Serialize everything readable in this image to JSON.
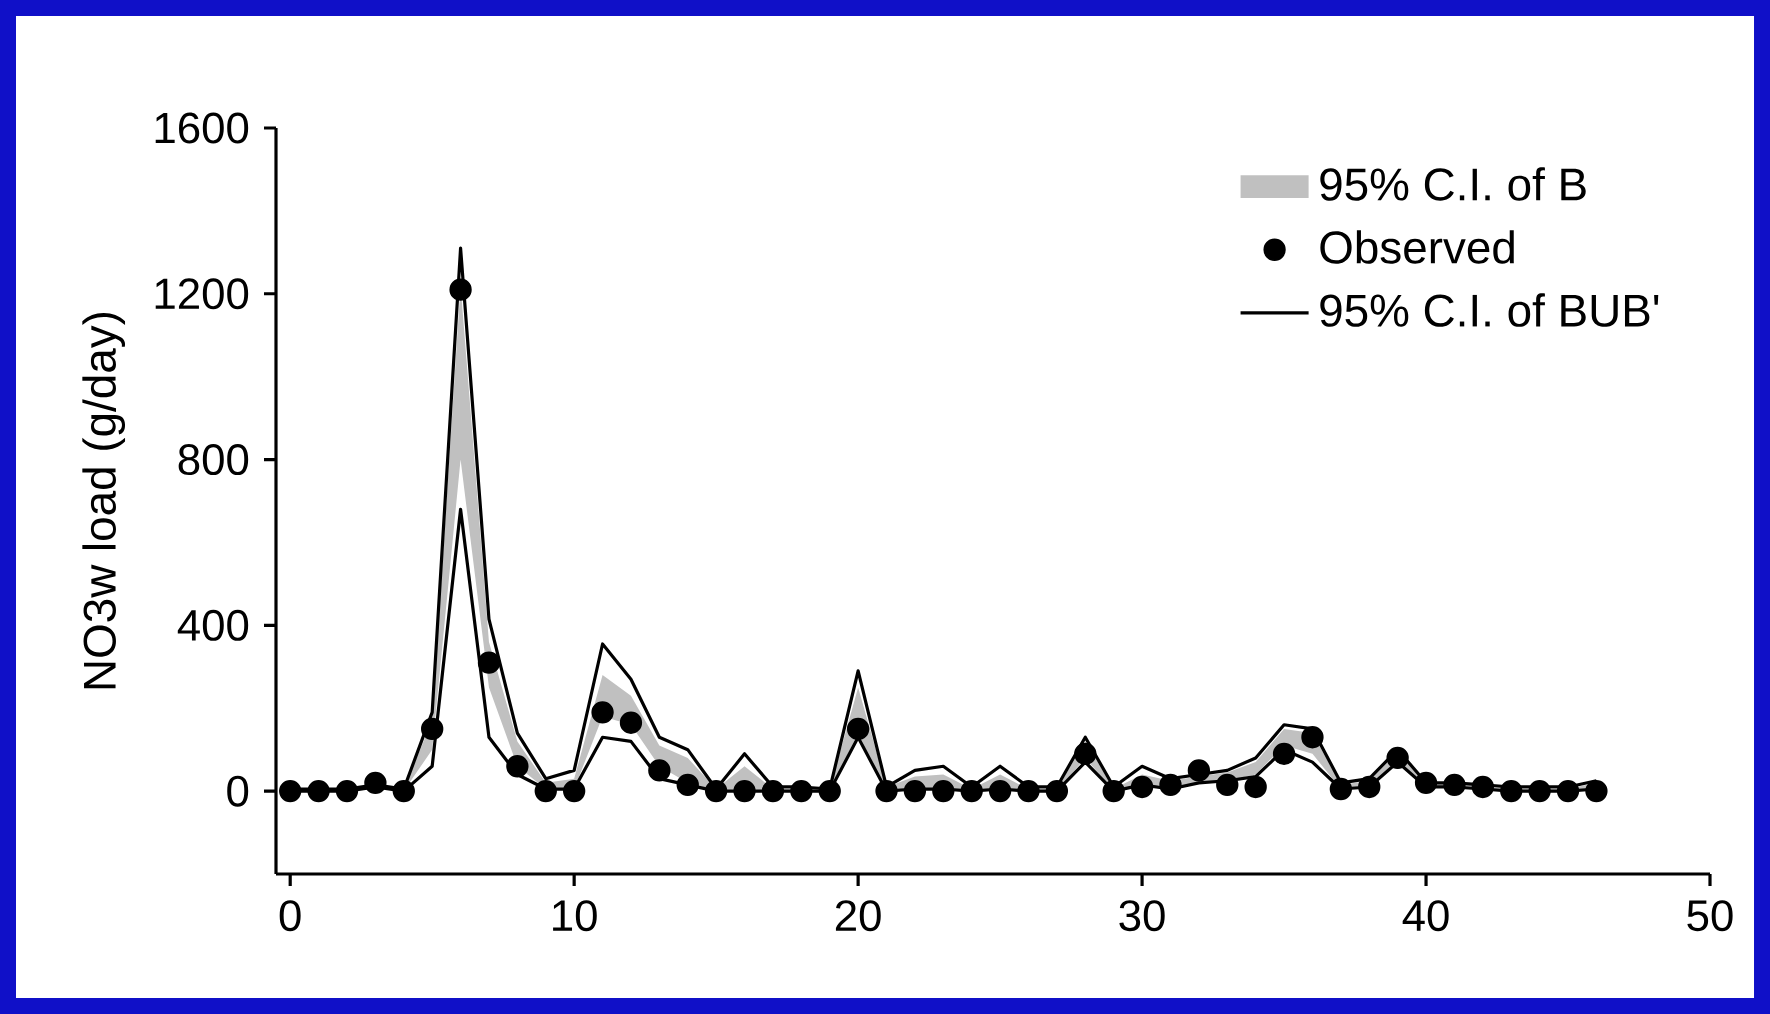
{
  "chart_data": {
    "type": "line",
    "ylabel": "NO3w  load (g/day)",
    "x": [
      0,
      1,
      2,
      3,
      4,
      5,
      6,
      7,
      8,
      9,
      10,
      11,
      12,
      13,
      14,
      15,
      16,
      17,
      18,
      19,
      20,
      21,
      22,
      23,
      24,
      25,
      26,
      27,
      28,
      29,
      30,
      31,
      32,
      33,
      34,
      35,
      36,
      37,
      38,
      39,
      40,
      41,
      42,
      43,
      44,
      45,
      46
    ],
    "xlim": [
      -0.5,
      50
    ],
    "xticks": [
      0,
      10,
      20,
      30,
      40,
      50
    ],
    "ylim": [
      -200,
      1600
    ],
    "yticks": [
      0,
      400,
      800,
      1200,
      1600
    ],
    "grid": false,
    "legend": "top right",
    "series": [
      {
        "name": "95% C.I. of B",
        "type": "area",
        "color": "#c0c0c0",
        "values": [
          null,
          null,
          null,
          null,
          null,
          null,
          null,
          null,
          null,
          null,
          null,
          null,
          null,
          null,
          null,
          null,
          null,
          null,
          null,
          null,
          null,
          null,
          null,
          null,
          null,
          null,
          null,
          null,
          null,
          null,
          null,
          null,
          null,
          null,
          null,
          null,
          null,
          null,
          null,
          null,
          null,
          null,
          null,
          null,
          null,
          null,
          null
        ],
        "lower": [
          0,
          0,
          0,
          10,
          0,
          100,
          800,
          250,
          60,
          5,
          5,
          180,
          160,
          60,
          20,
          0,
          5,
          0,
          0,
          0,
          140,
          0,
          5,
          5,
          0,
          5,
          0,
          0,
          80,
          0,
          10,
          10,
          20,
          25,
          40,
          110,
          90,
          5,
          10,
          70,
          10,
          10,
          5,
          0,
          0,
          0,
          5
        ],
        "upper": [
          5,
          5,
          5,
          15,
          5,
          170,
          1220,
          360,
          120,
          20,
          30,
          280,
          230,
          110,
          80,
          5,
          60,
          5,
          5,
          5,
          250,
          10,
          35,
          40,
          5,
          40,
          5,
          5,
          120,
          5,
          40,
          25,
          35,
          45,
          70,
          150,
          140,
          15,
          25,
          95,
          20,
          20,
          10,
          5,
          5,
          5,
          20
        ]
      },
      {
        "name": "Observed",
        "type": "scatter",
        "marker": "circle",
        "color": "#000000",
        "values": [
          0,
          0,
          0,
          20,
          0,
          150,
          1210,
          310,
          60,
          0,
          0,
          190,
          165,
          50,
          15,
          0,
          0,
          0,
          0,
          0,
          150,
          0,
          0,
          0,
          0,
          0,
          0,
          0,
          90,
          0,
          10,
          15,
          50,
          15,
          10,
          90,
          130,
          5,
          10,
          80,
          20,
          15,
          10,
          0,
          0,
          0,
          0
        ]
      },
      {
        "name": "95% C.I. of BUB'",
        "color": "#000000",
        "values": [
          5,
          5,
          5,
          15,
          5,
          190,
          1310,
          415,
          140,
          30,
          50,
          355,
          270,
          130,
          100,
          5,
          90,
          10,
          10,
          5,
          290,
          10,
          50,
          60,
          10,
          60,
          10,
          10,
          130,
          10,
          60,
          30,
          40,
          50,
          80,
          160,
          150,
          20,
          30,
          100,
          20,
          20,
          15,
          10,
          10,
          10,
          25
        ]
      },
      {
        "color": "#000000",
        "values": [
          0,
          0,
          0,
          10,
          0,
          60,
          680,
          130,
          40,
          5,
          5,
          130,
          120,
          30,
          15,
          0,
          0,
          0,
          0,
          0,
          130,
          0,
          5,
          5,
          0,
          5,
          0,
          0,
          70,
          0,
          15,
          5,
          20,
          25,
          35,
          100,
          70,
          5,
          10,
          70,
          10,
          10,
          5,
          0,
          0,
          0,
          5
        ]
      }
    ]
  }
}
